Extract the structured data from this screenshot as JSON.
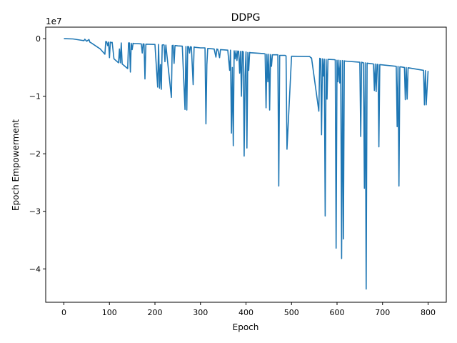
{
  "chart_data": {
    "type": "line",
    "title": "DDPG",
    "xlabel": "Epoch",
    "ylabel": "Epoch Empowerment",
    "y_offset_label": "1e7",
    "xlim": [
      -40,
      840
    ],
    "ylim": [
      -45800000.0,
      2000000.0
    ],
    "x_ticks": [
      0,
      100,
      200,
      300,
      400,
      500,
      600,
      700,
      800
    ],
    "x_tick_labels": [
      "0",
      "100",
      "200",
      "300",
      "400",
      "500",
      "600",
      "700",
      "800"
    ],
    "y_ticks": [
      0,
      -10000000.0,
      -20000000.0,
      -30000000.0,
      -40000000.0
    ],
    "y_tick_labels": [
      "0",
      "−1",
      "−2",
      "−3",
      "−4"
    ],
    "grid": false,
    "line_color": "#1f77b4",
    "series": [
      {
        "x": [
          0,
          20,
          40,
          44,
          46,
          50,
          55,
          57,
          60,
          80,
          90,
          92,
          94,
          96,
          98,
          100,
          102,
          104,
          106,
          110,
          120,
          122,
          124,
          126,
          128,
          140,
          142,
          144,
          146,
          148,
          150,
          152,
          154,
          160,
          170,
          172,
          174,
          176,
          178,
          180,
          200,
          206,
          208,
          210,
          212,
          214,
          216,
          218,
          220,
          222,
          224,
          236,
          238,
          240,
          242,
          244,
          246,
          250,
          260,
          266,
          268,
          270,
          272,
          274,
          276,
          278,
          280,
          284,
          286,
          288,
          300,
          310,
          312,
          314,
          316,
          330,
          334,
          336,
          338,
          342,
          344,
          360,
          364,
          366,
          368,
          370,
          372,
          374,
          376,
          378,
          380,
          382,
          384,
          386,
          388,
          390,
          392,
          394,
          396,
          398,
          400,
          402,
          404,
          406,
          408,
          410,
          420,
          440,
          442,
          444,
          446,
          448,
          450,
          452,
          454,
          456,
          458,
          470,
          472,
          474,
          486,
          488,
          490,
          500,
          540,
          542,
          544,
          560,
          562,
          564,
          566,
          568,
          570,
          572,
          574,
          576,
          578,
          580,
          594,
          596,
          598,
          600,
          602,
          604,
          606,
          608,
          610,
          612,
          614,
          616,
          618,
          650,
          652,
          654,
          658,
          660,
          662,
          664,
          666,
          668,
          670,
          680,
          682,
          684,
          686,
          688,
          690,
          692,
          694,
          730,
          732,
          734,
          736,
          738,
          740,
          748,
          750,
          752,
          754,
          756,
          790,
          792,
          794,
          796,
          800
        ],
        "values": [
          0,
          -50000.0,
          -300000.0,
          -350000.0,
          -100000.0,
          -450000.0,
          -150000.0,
          -600000.0,
          -750000.0,
          -1800000.0,
          -2700000.0,
          -500000.0,
          -550000.0,
          -1200000.0,
          -600000.0,
          -3300000.0,
          -600000.0,
          -700000.0,
          -650000.0,
          -3500000.0,
          -4200000.0,
          -1800000.0,
          -4200000.0,
          -750000.0,
          -4400000.0,
          -5200000.0,
          -750000.0,
          -750000.0,
          -5800000.0,
          -800000.0,
          -1900000.0,
          -800000.0,
          -850000.0,
          -850000.0,
          -900000.0,
          -2500000.0,
          -900000.0,
          -920000.0,
          -7000000.0,
          -950000.0,
          -1000000.0,
          -8400000.0,
          -1000000.0,
          -8600000.0,
          -4500000.0,
          -8800000.0,
          -1100000.0,
          -1050000.0,
          -1100000.0,
          -4000000.0,
          -1100000.0,
          -10200000.0,
          -1200000.0,
          -1150000.0,
          -4300000.0,
          -1200000.0,
          -1200000.0,
          -1250000.0,
          -1300000.0,
          -12300000.0,
          -1350000.0,
          -12400000.0,
          -1350000.0,
          -1400000.0,
          -2500000.0,
          -1400000.0,
          -1450000.0,
          -8000000.0,
          -1450000.0,
          -1500000.0,
          -1600000.0,
          -1600000.0,
          -14800000.0,
          -4500000.0,
          -1700000.0,
          -1800000.0,
          -3200000.0,
          -1800000.0,
          -1850000.0,
          -3300000.0,
          -1900000.0,
          -2000000.0,
          -5500000.0,
          -2000000.0,
          -16400000.0,
          -5000000.0,
          -18600000.0,
          -2100000.0,
          -3500000.0,
          -2100000.0,
          -3800000.0,
          -2150000.0,
          -2200000.0,
          -6000000.0,
          -2200000.0,
          -10000000.0,
          -2200000.0,
          -2300000.0,
          -20400000.0,
          -6500000.0,
          -2300000.0,
          -19000000.0,
          -2400000.0,
          -5500000.0,
          -2400000.0,
          -2450000.0,
          -2500000.0,
          -2600000.0,
          -2650000.0,
          -12000000.0,
          -2700000.0,
          -7500000.0,
          -2700000.0,
          -12400000.0,
          -2750000.0,
          -4800000.0,
          -2800000.0,
          -2800000.0,
          -25600000.0,
          -2900000.0,
          -2900000.0,
          -3000000.0,
          -19200000.0,
          -3050000.0,
          -3100000.0,
          -3300000.0,
          -3350000.0,
          -12600000.0,
          -3400000.0,
          -3500000.0,
          -16700000.0,
          -3500000.0,
          -6500000.0,
          -3550000.0,
          -30800000.0,
          -3600000.0,
          -10500000.0,
          -3600000.0,
          -3650000.0,
          -3700000.0,
          -36400000.0,
          -3750000.0,
          -7500000.0,
          -3750000.0,
          -7700000.0,
          -3800000.0,
          -38200000.0,
          -3800000.0,
          -34800000.0,
          -3850000.0,
          -3900000.0,
          -4100000.0,
          -17000000.0,
          -4100000.0,
          -4200000.0,
          -26000000.0,
          -4200000.0,
          -43500000.0,
          -4250000.0,
          -4300000.0,
          -4300000.0,
          -4400000.0,
          -9000000.0,
          -4400000.0,
          -9200000.0,
          -4450000.0,
          -4500000.0,
          -18800000.0,
          -4500000.0,
          -4800000.0,
          -15300000.0,
          -4800000.0,
          -25600000.0,
          -4900000.0,
          -4900000.0,
          -5000000.0,
          -10600000.0,
          -5000000.0,
          -10500000.0,
          -5050000.0,
          -5500000.0,
          -11500000.0,
          -5550000.0,
          -11500000.0,
          -5600000.0
        ]
      }
    ]
  }
}
